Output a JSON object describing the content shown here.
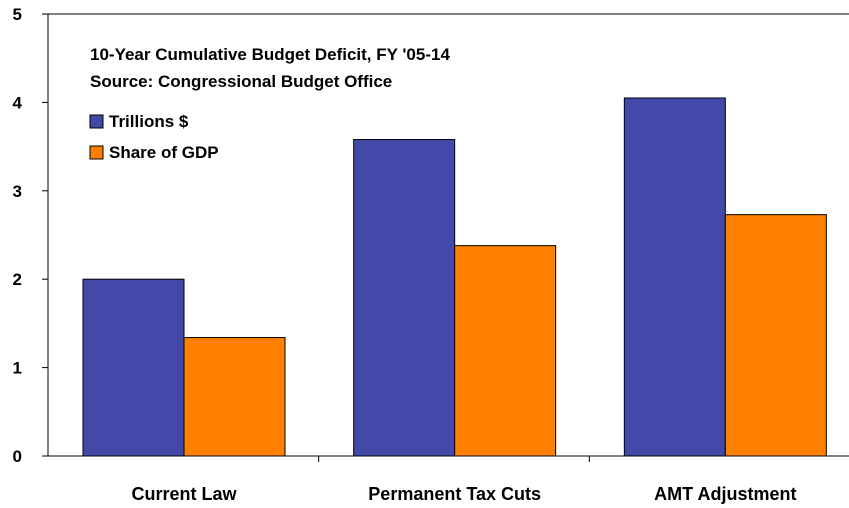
{
  "chart_data": {
    "type": "bar",
    "title": "10-Year Cumulative Budget Deficit, FY '05-14",
    "subtitle": "Source: Congressional Budget Office",
    "categories": [
      "Current Law",
      "Permanent Tax Cuts",
      "AMT Adjustment"
    ],
    "series": [
      {
        "name": "Trillions $",
        "color": "#4349A8",
        "values": [
          2.0,
          3.58,
          4.05
        ]
      },
      {
        "name": "Share of GDP",
        "color": "#FF8000",
        "values": [
          1.34,
          2.38,
          2.73
        ]
      }
    ],
    "yticks": [
      "0",
      "1",
      "2",
      "3",
      "4",
      "5"
    ],
    "ylim": [
      0,
      5
    ],
    "xlabel": "",
    "ylabel": "",
    "grid": false,
    "legend_position": "top-left"
  }
}
